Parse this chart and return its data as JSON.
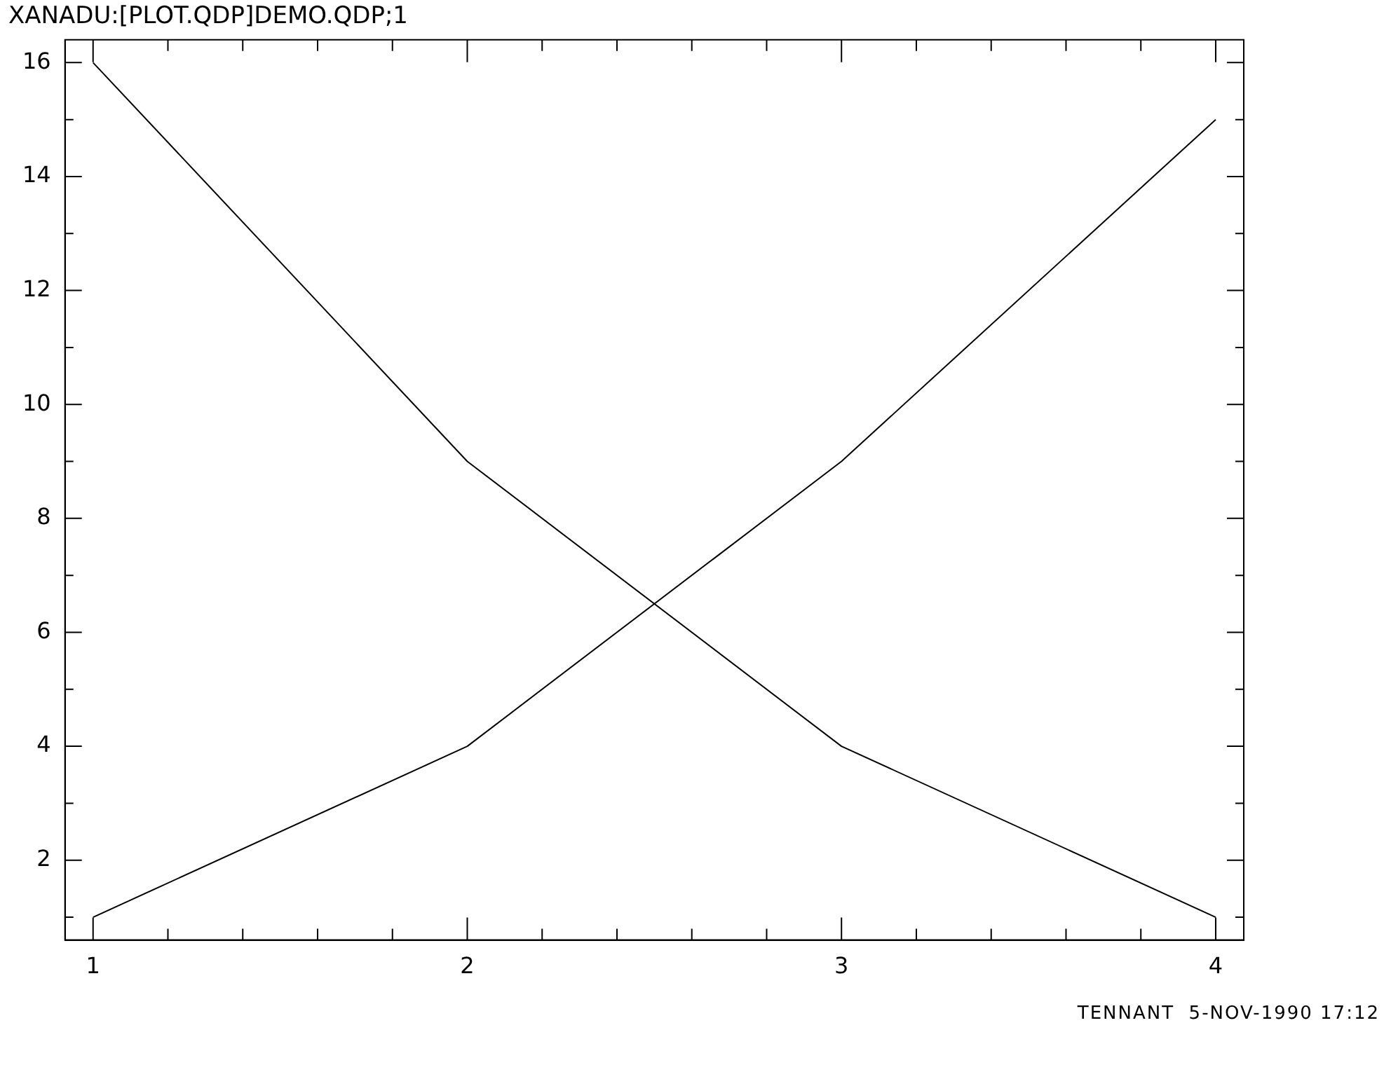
{
  "chart_data": {
    "type": "line",
    "title": "XANADU:[PLOT.QDP]DEMO.QDP;1",
    "annotations": [
      "TENNANT  5-NOV-1990 17:12"
    ],
    "x": [
      1,
      2,
      3,
      4
    ],
    "series": [
      {
        "color": "#000000",
        "values": [
          1,
          4,
          9,
          15
        ]
      },
      {
        "color": "#000000",
        "values": [
          16,
          9,
          4,
          1
        ]
      }
    ],
    "xlim": [
      0.925,
      4.075
    ],
    "xticks": [
      1,
      {
        "value": 1.2,
        "label": null
      },
      {
        "value": 1.4,
        "label": null
      },
      {
        "value": 1.6,
        "label": null
      },
      {
        "value": 1.8,
        "label": null
      },
      2,
      {
        "value": 2.2,
        "label": null
      },
      {
        "value": 2.4,
        "label": null
      },
      {
        "value": 2.6,
        "label": null
      },
      {
        "value": 2.8,
        "label": null
      },
      3,
      {
        "value": 3.2,
        "label": null
      },
      {
        "value": 3.4,
        "label": null
      },
      {
        "value": 3.6,
        "label": null
      },
      {
        "value": 3.8,
        "label": null
      },
      4
    ],
    "ylim": [
      0.6,
      16.4
    ],
    "yticks": [
      {
        "value": 1,
        "label": null
      },
      2,
      {
        "value": 3,
        "label": null
      },
      4,
      {
        "value": 5,
        "label": null
      },
      6,
      {
        "value": 7,
        "label": null
      },
      8,
      {
        "value": 9,
        "label": null
      },
      10,
      {
        "value": 11,
        "label": null
      },
      12,
      {
        "value": 13,
        "label": null
      },
      14,
      {
        "value": 15,
        "label": null
      },
      16
    ],
    "grid": false,
    "legend": false,
    "marker": "none",
    "line_style": "solid"
  }
}
